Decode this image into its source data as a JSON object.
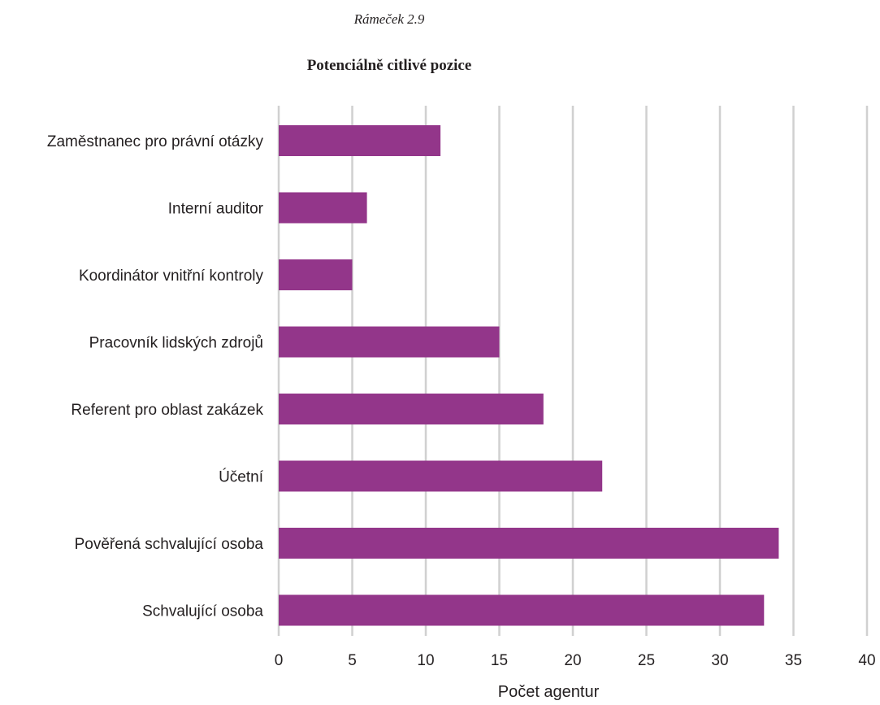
{
  "header": {
    "box_label": "Rámeček 2.9",
    "title": "Potenciálně citlivé pozice"
  },
  "chart_data": {
    "type": "bar",
    "orientation": "horizontal",
    "title": "Potenciálně citlivé pozice",
    "xlabel": "Počet agentur",
    "ylabel": "",
    "categories": [
      "Zaměstnanec pro právní otázky",
      "Interní auditor",
      "Koordinátor vnitřní kontroly",
      "Pracovník lidských zdrojů",
      "Referent pro oblast zakázek",
      "Účetní",
      "Pověřená schvalující osoba",
      "Schvalující osoba"
    ],
    "values": [
      11,
      6,
      5,
      15,
      18,
      22,
      34,
      33
    ],
    "xlim": [
      0,
      40
    ],
    "xticks": [
      0,
      5,
      10,
      15,
      20,
      25,
      30,
      35,
      40
    ],
    "grid": "vertical",
    "bar_color": "#93368a",
    "grid_color": "#d0d0d0"
  }
}
